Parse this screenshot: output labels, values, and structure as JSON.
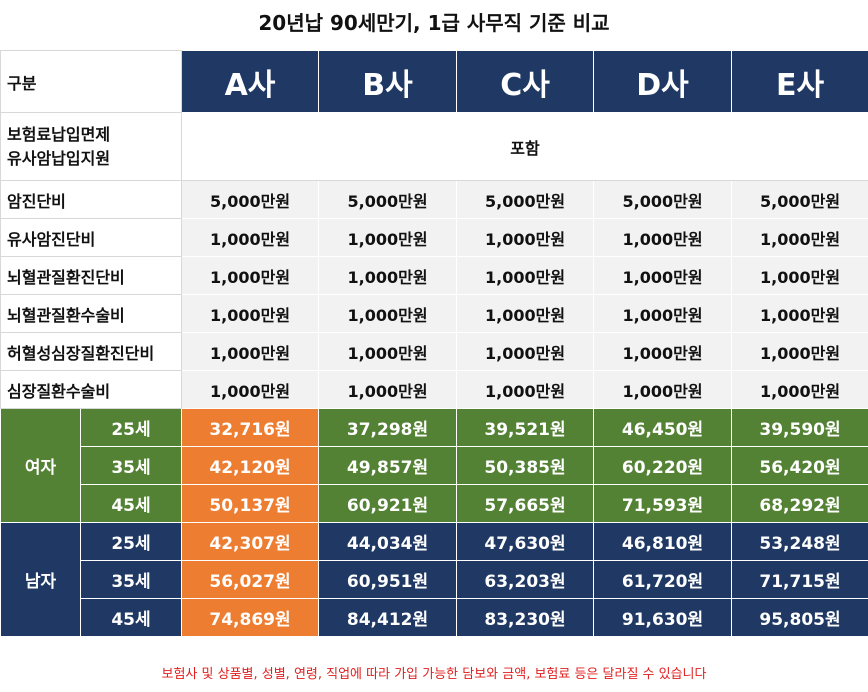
{
  "title": "20년납 90세만기, 1급 사무직 기준 비교",
  "header": {
    "label": "구분",
    "companies": [
      "A사",
      "B사",
      "C사",
      "D사",
      "E사"
    ]
  },
  "waiver": {
    "label_line1": "보험료납입면제",
    "label_line2": "유사암납입지원",
    "value": "포함"
  },
  "benefits": [
    {
      "label": "암진단비",
      "values": [
        "5,000만원",
        "5,000만원",
        "5,000만원",
        "5,000만원",
        "5,000만원"
      ]
    },
    {
      "label": "유사암진단비",
      "values": [
        "1,000만원",
        "1,000만원",
        "1,000만원",
        "1,000만원",
        "1,000만원"
      ]
    },
    {
      "label": "뇌혈관질환진단비",
      "values": [
        "1,000만원",
        "1,000만원",
        "1,000만원",
        "1,000만원",
        "1,000만원"
      ]
    },
    {
      "label": "뇌혈관질환수술비",
      "values": [
        "1,000만원",
        "1,000만원",
        "1,000만원",
        "1,000만원",
        "1,000만원"
      ]
    },
    {
      "label": "허혈성심장질환진단비",
      "values": [
        "1,000만원",
        "1,000만원",
        "1,000만원",
        "1,000만원",
        "1,000만원"
      ]
    },
    {
      "label": "심장질환수술비",
      "values": [
        "1,000만원",
        "1,000만원",
        "1,000만원",
        "1,000만원",
        "1,000만원"
      ]
    }
  ],
  "premiums": {
    "female": {
      "label": "여자",
      "rows": [
        {
          "age": "25세",
          "values": [
            "32,716원",
            "37,298원",
            "39,521원",
            "46,450원",
            "39,590원"
          ]
        },
        {
          "age": "35세",
          "values": [
            "42,120원",
            "49,857원",
            "50,385원",
            "60,220원",
            "56,420원"
          ]
        },
        {
          "age": "45세",
          "values": [
            "50,137원",
            "60,921원",
            "57,665원",
            "71,593원",
            "68,292원"
          ]
        }
      ]
    },
    "male": {
      "label": "남자",
      "rows": [
        {
          "age": "25세",
          "values": [
            "42,307원",
            "44,034원",
            "47,630원",
            "46,810원",
            "53,248원"
          ]
        },
        {
          "age": "35세",
          "values": [
            "56,027원",
            "60,951원",
            "63,203원",
            "61,720원",
            "71,715원"
          ]
        },
        {
          "age": "45세",
          "values": [
            "74,869원",
            "84,412원",
            "83,230원",
            "91,630원",
            "95,805원"
          ]
        }
      ]
    }
  },
  "colors": {
    "navy": "#1f3864",
    "green": "#548235",
    "highlight_orange": "#ed7d31",
    "footnote_red": "#e02020"
  },
  "footnote": "보험사 및 상품별, 성별, 연령, 직업에 따라 가입 가능한 담보와 금액, 보험료 등은 달라질 수 있습니다"
}
